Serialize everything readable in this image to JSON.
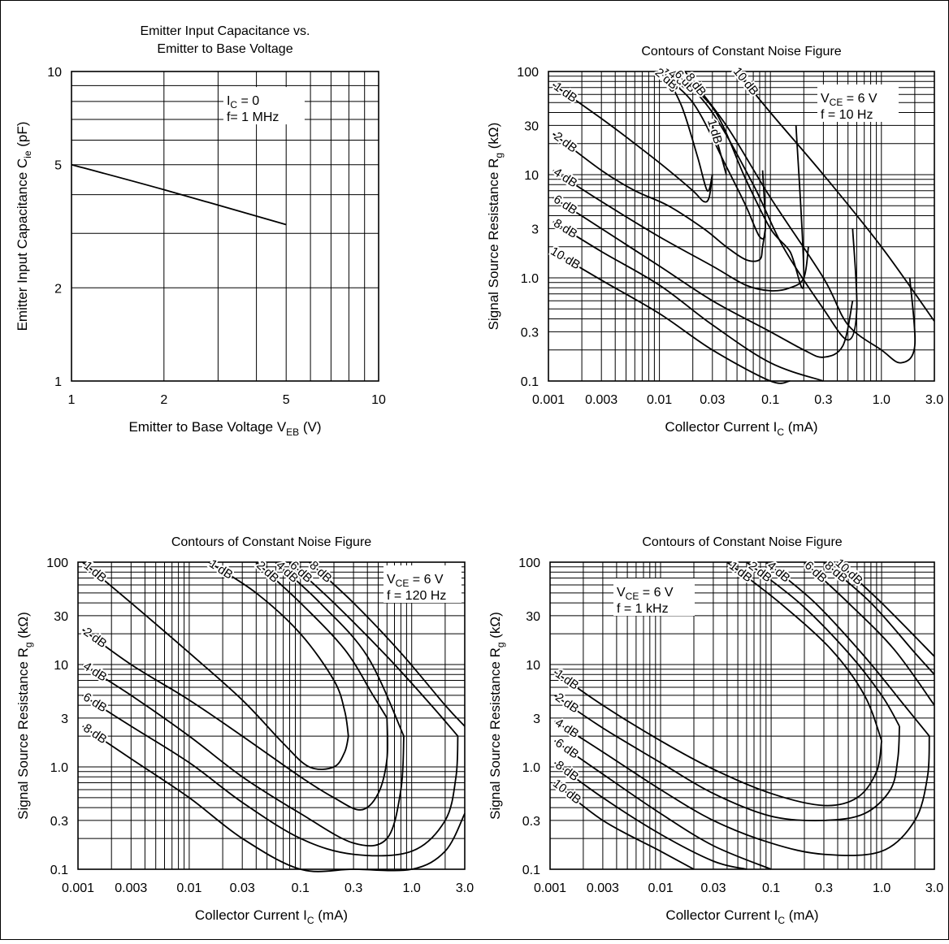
{
  "chart_data": [
    {
      "type": "line",
      "title": [
        "Emitter Input Capacitance vs.",
        "Emitter to Base Voltage"
      ],
      "xlabel": "Emitter to Base Voltage  V",
      "xlabel_sub": "EB",
      "xlabel_unit": "(V)",
      "ylabel": "Emitter Input Capacitance  C",
      "ylabel_sub": "ie",
      "ylabel_unit": "(pF)",
      "xscale": "log",
      "yscale": "log",
      "xlim": [
        1,
        10
      ],
      "ylim": [
        1,
        10
      ],
      "xticks": [
        "1",
        "2",
        "5",
        "10"
      ],
      "yticks": [
        "1",
        "2",
        "5",
        "10"
      ],
      "grid": true,
      "annotation": [
        "I",
        "C",
        " = 0",
        "f= 1 MHz"
      ],
      "series": [
        {
          "x": [
            1,
            2,
            5
          ],
          "y": [
            5,
            4.15,
            3.2
          ]
        }
      ]
    },
    {
      "type": "line",
      "title": "Contours of Constant Noise Figure",
      "xlabel": "Collector Current  I",
      "xlabel_sub": "C",
      "xlabel_unit": "(mA)",
      "ylabel": "Signal Source Resistance  R",
      "ylabel_sub": "g",
      "ylabel_unit": "(kΩ)",
      "xscale": "log",
      "yscale": "log",
      "xlim": [
        0.001,
        3.0
      ],
      "ylim": [
        0.1,
        100
      ],
      "xticks": [
        "0.001",
        "0.003",
        "0.01",
        "0.03",
        "0.1",
        "0.3",
        "1.0",
        "3.0"
      ],
      "yticks": [
        "0.1",
        "0.3",
        "1.0",
        "3",
        "10",
        "30",
        "100"
      ],
      "grid": true,
      "conditions": [
        "V",
        "CE",
        " = 6 V",
        "f = 10 Hz"
      ],
      "series": [
        {
          "label": "1 dB",
          "x": [
            0.011,
            0.016,
            0.022,
            0.027,
            0.03
          ],
          "y": [
            100,
            45,
            15,
            7,
            10
          ]
        },
        {
          "label": "1 dB",
          "x": [
            0.03,
            0.035,
            0.04
          ],
          "y": [
            30,
            17,
            10
          ]
        },
        {
          "label": "2 dB",
          "x": [
            0.0095,
            0.02,
            0.04,
            0.06,
            0.08,
            0.09,
            0.085
          ],
          "y": [
            100,
            50,
            12,
            5,
            2.5,
            3,
            11
          ]
        },
        {
          "label": "4 dB",
          "x": [
            0.012,
            0.03,
            0.06,
            0.1,
            0.15,
            0.2,
            0.17
          ],
          "y": [
            100,
            45,
            9,
            3,
            1.8,
            0.9,
            30
          ]
        },
        {
          "label": "6 dB",
          "x": [
            0.014,
            0.03,
            0.07,
            0.13,
            0.3,
            0.5,
            0.6,
            0.55
          ],
          "y": [
            100,
            40,
            8,
            2,
            0.5,
            0.25,
            0.5,
            3
          ]
        },
        {
          "label": "8 dB",
          "x": [
            0.017,
            0.04,
            0.1,
            0.3,
            0.5,
            1.0,
            1.5,
            2.0,
            1.8
          ],
          "y": [
            100,
            30,
            6,
            1,
            0.35,
            0.2,
            0.15,
            0.22,
            1
          ]
        },
        {
          "label": "10 dB",
          "x": [
            0.05,
            0.1,
            0.3,
            1.0,
            3.0
          ],
          "y": [
            100,
            40,
            10,
            2,
            0.38
          ]
        },
        {
          "label": "1 dB",
          "x": [
            0.0011,
            0.003,
            0.006,
            0.011,
            0.02,
            0.025,
            0.028,
            0.03
          ],
          "y": [
            75,
            35,
            20,
            12,
            7,
            5.5,
            6,
            10
          ]
        },
        {
          "label": "2 dB",
          "x": [
            0.0011,
            0.003,
            0.006,
            0.012,
            0.025,
            0.04,
            0.06,
            0.08,
            0.085,
            0.09
          ],
          "y": [
            25,
            11,
            7,
            5,
            3,
            2,
            1.5,
            1.5,
            2,
            3
          ]
        },
        {
          "label": "4 dB",
          "x": [
            0.0011,
            0.003,
            0.01,
            0.03,
            0.06,
            0.1,
            0.15,
            0.2,
            0.22
          ],
          "y": [
            11,
            5.5,
            2.5,
            1.3,
            0.85,
            0.75,
            0.8,
            1,
            2
          ]
        },
        {
          "label": "6 dB",
          "x": [
            0.0011,
            0.003,
            0.01,
            0.03,
            0.1,
            0.2,
            0.3,
            0.45,
            0.55
          ],
          "y": [
            6,
            3,
            1.3,
            0.6,
            0.3,
            0.2,
            0.17,
            0.22,
            0.6
          ]
        },
        {
          "label": "8 dB",
          "x": [
            0.0011,
            0.003,
            0.01,
            0.03,
            0.1,
            0.3
          ],
          "y": [
            3.5,
            1.8,
            0.85,
            0.35,
            0.15,
            0.1
          ]
        },
        {
          "label": "10 dB",
          "x": [
            0.0011,
            0.003,
            0.01,
            0.03,
            0.1,
            0.15
          ],
          "y": [
            1.8,
            0.95,
            0.45,
            0.2,
            0.1,
            0.1
          ]
        }
      ]
    },
    {
      "type": "line",
      "title": "Contours of Constant Noise Figure",
      "xlabel": "Collector Current  I",
      "xlabel_sub": "C",
      "xlabel_unit": "(mA)",
      "ylabel": "Signal Source Resistance  R",
      "ylabel_sub": "g",
      "ylabel_unit": "(kΩ)",
      "xscale": "log",
      "yscale": "log",
      "xlim": [
        0.001,
        3.0
      ],
      "ylim": [
        0.1,
        100
      ],
      "xticks": [
        "0.001",
        "0.003",
        "0.01",
        "0.03",
        "0.1",
        "0.3",
        "1.0",
        "3.0"
      ],
      "yticks": [
        "0.1",
        "0.3",
        "1.0",
        "3",
        "10",
        "30",
        "100"
      ],
      "grid": true,
      "conditions": [
        "V",
        "CE",
        " = 6 V",
        "f = 120 Hz"
      ],
      "series": [
        {
          "label": "1 dB",
          "x": [
            0.0011,
            0.003,
            0.01,
            0.03,
            0.07,
            0.12,
            0.2,
            0.25,
            0.27
          ],
          "y": [
            100,
            40,
            13,
            4.5,
            1.7,
            1.0,
            1.0,
            1.4,
            2.0
          ]
        },
        {
          "label": "1 dB",
          "x": [
            0.015,
            0.04,
            0.1,
            0.2,
            0.25,
            0.27
          ],
          "y": [
            100,
            50,
            20,
            7,
            3.5,
            2.0
          ]
        },
        {
          "label": "2 dB",
          "x": [
            0.0011,
            0.003,
            0.01,
            0.03,
            0.1,
            0.2,
            0.35,
            0.5,
            0.6,
            0.6
          ],
          "y": [
            22,
            10,
            4.5,
            2,
            0.8,
            0.5,
            0.38,
            0.55,
            1.2,
            3
          ]
        },
        {
          "label": "2 dB",
          "x": [
            0.04,
            0.1,
            0.25,
            0.45,
            0.6
          ],
          "y": [
            100,
            40,
            14,
            5,
            3
          ]
        },
        {
          "label": "4 dB",
          "x": [
            0.0011,
            0.003,
            0.01,
            0.03,
            0.1,
            0.3,
            0.6,
            0.8,
            0.85
          ],
          "y": [
            10,
            5,
            2,
            0.8,
            0.35,
            0.18,
            0.2,
            0.6,
            2
          ]
        },
        {
          "label": "4 dB",
          "x": [
            0.06,
            0.15,
            0.4,
            0.85
          ],
          "y": [
            100,
            40,
            12,
            2
          ]
        },
        {
          "label": "6 dB",
          "x": [
            0.0011,
            0.003,
            0.01,
            0.03,
            0.1,
            0.3,
            1.0,
            2.0,
            2.5,
            2.6
          ],
          "y": [
            5,
            2.5,
            1.1,
            0.45,
            0.2,
            0.14,
            0.15,
            0.3,
            0.8,
            2
          ]
        },
        {
          "label": "6 dB",
          "x": [
            0.08,
            0.2,
            0.6,
            1.5,
            2.6
          ],
          "y": [
            100,
            40,
            12,
            4,
            2
          ]
        },
        {
          "label": "8 dB",
          "x": [
            0.0011,
            0.003,
            0.01,
            0.03,
            0.1,
            0.3,
            1.0,
            2.0,
            3.0
          ],
          "y": [
            2.5,
            1.2,
            0.5,
            0.2,
            0.1,
            0.07,
            0.08,
            0.15,
            0.35
          ]
        },
        {
          "label": "8 dB",
          "x": [
            0.12,
            0.3,
            0.8,
            2.0,
            3.0
          ],
          "y": [
            100,
            40,
            13,
            4,
            2.5
          ]
        }
      ]
    },
    {
      "type": "line",
      "title": "Contours of Constant Noise Figure",
      "xlabel": "Collector Current  I",
      "xlabel_sub": "C",
      "xlabel_unit": "(mA)",
      "ylabel": "Signal Source Resistance  R",
      "ylabel_sub": "g",
      "ylabel_unit": "(kΩ)",
      "xscale": "log",
      "yscale": "log",
      "xlim": [
        0.001,
        3.0
      ],
      "ylim": [
        0.1,
        100
      ],
      "xticks": [
        "0.001",
        "0.003",
        "0.01",
        "0.03",
        "0.1",
        "0.3",
        "1.0",
        "3.0"
      ],
      "yticks": [
        "0.1",
        "0.3",
        "1.0",
        "3",
        "10",
        "30",
        "100"
      ],
      "grid": true,
      "conditions": [
        "V",
        "CE",
        " = 6 V",
        "f = 1 kHz"
      ],
      "series": [
        {
          "label": "1 dB",
          "x": [
            0.0011,
            0.003,
            0.01,
            0.03,
            0.1,
            0.3,
            0.6,
            0.9,
            1.0
          ],
          "y": [
            8.5,
            4,
            1.8,
            0.95,
            0.55,
            0.42,
            0.5,
            0.9,
            1.8
          ]
        },
        {
          "label": "1 dB",
          "x": [
            0.04,
            0.12,
            0.35,
            0.7,
            1.0
          ],
          "y": [
            100,
            40,
            14,
            5,
            1.8
          ]
        },
        {
          "label": "2 dB",
          "x": [
            0.0011,
            0.003,
            0.01,
            0.03,
            0.1,
            0.3,
            0.7,
            1.2,
            1.4,
            1.45
          ],
          "y": [
            5,
            2.4,
            1.1,
            0.55,
            0.33,
            0.3,
            0.35,
            0.6,
            1.2,
            2.5
          ]
        },
        {
          "label": "2 dB",
          "x": [
            0.06,
            0.18,
            0.5,
            1.0,
            1.45
          ],
          "y": [
            100,
            40,
            13,
            5,
            2.5
          ]
        },
        {
          "label": "4 dB",
          "x": [
            0.0011,
            0.003,
            0.01,
            0.03,
            0.1,
            0.3,
            1.0,
            2.0,
            2.6,
            2.7
          ],
          "y": [
            2.8,
            1.4,
            0.6,
            0.3,
            0.18,
            0.14,
            0.15,
            0.3,
            0.8,
            2
          ]
        },
        {
          "label": "4 dB",
          "x": [
            0.09,
            0.25,
            0.7,
            1.6,
            2.7
          ],
          "y": [
            100,
            40,
            12,
            4,
            2
          ]
        },
        {
          "label": "6 dB",
          "x": [
            0.0011,
            0.003,
            0.01,
            0.03,
            0.1
          ],
          "y": [
            1.8,
            0.85,
            0.35,
            0.17,
            0.1
          ]
        },
        {
          "label": "6 dB",
          "x": [
            0.2,
            0.5,
            1.3,
            3.0
          ],
          "y": [
            100,
            40,
            14,
            4
          ]
        },
        {
          "label": "8 dB",
          "x": [
            0.0011,
            0.003,
            0.01,
            0.03,
            0.06
          ],
          "y": [
            1.1,
            0.5,
            0.22,
            0.12,
            0.1
          ]
        },
        {
          "label": "8 dB",
          "x": [
            0.3,
            0.8,
            2.0,
            3.0
          ],
          "y": [
            100,
            40,
            13,
            8
          ]
        },
        {
          "label": "10 dB",
          "x": [
            0.0011,
            0.003,
            0.01,
            0.02
          ],
          "y": [
            0.7,
            0.3,
            0.15,
            0.1
          ]
        },
        {
          "label": "10 dB",
          "x": [
            0.4,
            1.0,
            3.0
          ],
          "y": [
            100,
            40,
            12
          ]
        }
      ]
    }
  ]
}
